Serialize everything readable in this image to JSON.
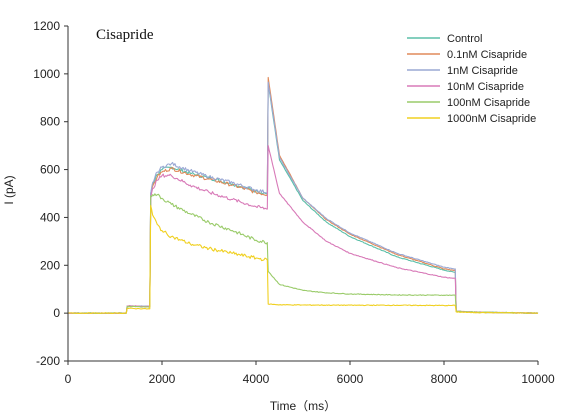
{
  "chart_data": {
    "type": "line",
    "title": "Cisapride",
    "xlabel": "Time（ms）",
    "ylabel": "I (pA)",
    "xlim": [
      0,
      10000
    ],
    "ylim": [
      -200,
      1200
    ],
    "xticks": [
      0,
      2000,
      4000,
      6000,
      8000,
      10000
    ],
    "yticks": [
      -200,
      0,
      200,
      400,
      600,
      800,
      1000,
      1200
    ],
    "x_tick_labels": [
      "0",
      "2000",
      "4000",
      "6000",
      "8000",
      "10000"
    ],
    "y_tick_labels": [
      "-200",
      "0",
      "200",
      "400",
      "600",
      "800",
      "1000",
      "1200"
    ],
    "grid": false,
    "legend_position": "top-right",
    "series": [
      {
        "name": "Control",
        "color": "#5bbfa8",
        "x": [
          0,
          1240,
          1260,
          1740,
          1760,
          1800,
          1900,
          2000,
          2200,
          2600,
          3000,
          3500,
          4000,
          4240,
          4260,
          4500,
          5000,
          5500,
          6000,
          7000,
          8000,
          8240,
          8260,
          8500,
          9000,
          10000
        ],
        "y": [
          0,
          0,
          30,
          28,
          500,
          540,
          580,
          600,
          610,
          585,
          565,
          540,
          510,
          500,
          960,
          640,
          470,
          380,
          320,
          235,
          180,
          170,
          8,
          5,
          3,
          0
        ]
      },
      {
        "name": "0.1nM Cisapride",
        "color": "#e08a5a",
        "x": [
          0,
          1240,
          1260,
          1740,
          1760,
          1800,
          1900,
          2000,
          2200,
          2600,
          3000,
          3500,
          4000,
          4240,
          4260,
          4500,
          5000,
          5500,
          6000,
          7000,
          8000,
          8240,
          8260,
          8500,
          9000,
          10000
        ],
        "y": [
          0,
          0,
          30,
          28,
          490,
          530,
          570,
          590,
          605,
          580,
          560,
          535,
          505,
          495,
          985,
          660,
          480,
          390,
          330,
          245,
          185,
          178,
          8,
          5,
          3,
          0
        ]
      },
      {
        "name": "1nM Cisapride",
        "color": "#9aa8d4",
        "x": [
          0,
          1240,
          1260,
          1740,
          1760,
          1800,
          1900,
          2000,
          2200,
          2600,
          3000,
          3500,
          4000,
          4240,
          4260,
          4500,
          5000,
          5500,
          6000,
          7000,
          8000,
          8240,
          8260,
          8500,
          9000,
          10000
        ],
        "y": [
          0,
          0,
          30,
          28,
          500,
          545,
          590,
          610,
          625,
          595,
          570,
          545,
          515,
          505,
          965,
          650,
          480,
          395,
          335,
          250,
          192,
          185,
          8,
          5,
          3,
          0
        ]
      },
      {
        "name": "10nM Cisapride",
        "color": "#d87ab8",
        "x": [
          0,
          1240,
          1260,
          1740,
          1760,
          1800,
          1900,
          2000,
          2200,
          2600,
          3000,
          3500,
          4000,
          4240,
          4260,
          4500,
          5000,
          5500,
          6000,
          7000,
          8000,
          8240,
          8260,
          8500,
          9000,
          10000
        ],
        "y": [
          0,
          0,
          30,
          28,
          480,
          520,
          555,
          575,
          575,
          535,
          505,
          475,
          445,
          435,
          700,
          500,
          380,
          300,
          250,
          190,
          150,
          145,
          8,
          5,
          3,
          0
        ]
      },
      {
        "name": "100nM Cisapride",
        "color": "#9acb6a",
        "x": [
          0,
          1240,
          1260,
          1740,
          1760,
          1800,
          1900,
          2000,
          2200,
          2600,
          3000,
          3500,
          4000,
          4240,
          4260,
          4500,
          5000,
          5500,
          6000,
          7000,
          8000,
          8240,
          8260,
          8500,
          9000,
          10000
        ],
        "y": [
          0,
          0,
          28,
          26,
          490,
          495,
          495,
          480,
          455,
          415,
          380,
          345,
          305,
          295,
          175,
          120,
          95,
          85,
          80,
          76,
          75,
          75,
          8,
          5,
          3,
          0
        ]
      },
      {
        "name": "1000nM Cisapride",
        "color": "#f0d020",
        "x": [
          0,
          1240,
          1260,
          1740,
          1760,
          1800,
          1900,
          2000,
          2200,
          2600,
          3000,
          3500,
          4000,
          4240,
          4260,
          4500,
          5000,
          6000,
          7000,
          8000,
          8240,
          8260,
          8500,
          9000,
          10000
        ],
        "y": [
          0,
          0,
          20,
          18,
          450,
          410,
          370,
          345,
          320,
          290,
          270,
          250,
          230,
          222,
          38,
          35,
          34,
          33,
          33,
          32,
          32,
          5,
          3,
          2,
          0
        ]
      }
    ]
  }
}
